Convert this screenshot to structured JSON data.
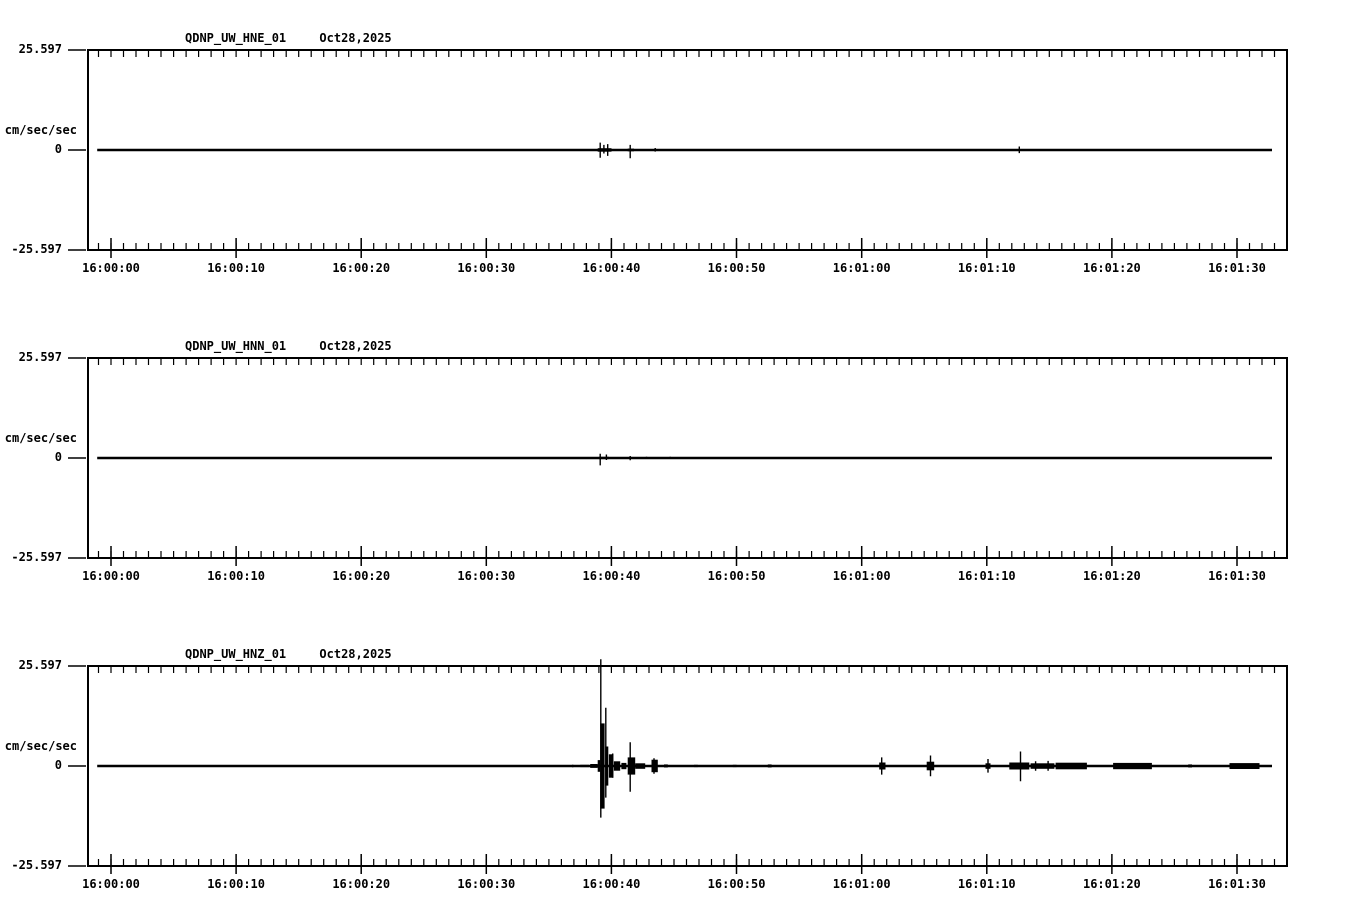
{
  "colors": {
    "foreground": "#000000",
    "background": "#ffffff"
  },
  "axis": {
    "y_max_label": "25.597",
    "y_zero_label": "0",
    "y_min_label": "-25.597",
    "y_unit_label": "cm/sec/sec",
    "y_max_value": 25.597,
    "x_minor_tick_interval_sec": 1,
    "trace_start_sec": -1.1,
    "trace_end_sec": 92.8,
    "x_major_ticks": [
      {
        "t": 0,
        "label": "16:00:00"
      },
      {
        "t": 10,
        "label": "16:00:10"
      },
      {
        "t": 20,
        "label": "16:00:20"
      },
      {
        "t": 30,
        "label": "16:00:30"
      },
      {
        "t": 40,
        "label": "16:00:40"
      },
      {
        "t": 50,
        "label": "16:00:50"
      },
      {
        "t": 60,
        "label": "16:01:00"
      },
      {
        "t": 70,
        "label": "16:01:10"
      },
      {
        "t": 80,
        "label": "16:01:20"
      },
      {
        "t": 90,
        "label": "16:01:30"
      }
    ]
  },
  "chart_data": [
    {
      "type": "line",
      "title": "QDNP_UW_HNE_01   Oct28,2025",
      "station": "QDNP_UW_HNE_01",
      "date": "Oct28,2025",
      "ylabel": "cm/sec/sec",
      "ylim": [
        -25.597,
        25.597
      ],
      "baseline_value": 0,
      "x_unit": "time of day (HH:MM:SS), seconds after 16:00:00",
      "spikes": [
        [
          39.1,
          1.9,
          2.0
        ],
        [
          39.4,
          1.3,
          0.9
        ],
        [
          39.7,
          1.5,
          1.5
        ],
        [
          41.5,
          1.3,
          2.1
        ],
        [
          43.5,
          0.5,
          0.4
        ],
        [
          72.6,
          0.9,
          0.8
        ]
      ],
      "bands": [
        [
          38.9,
          40.0,
          0.45
        ],
        [
          41.3,
          41.8,
          0.35
        ],
        [
          69.9,
          70.1,
          0.2
        ]
      ]
    },
    {
      "type": "line",
      "title": "QDNP_UW_HNN_01   Oct28,2025",
      "station": "QDNP_UW_HNN_01",
      "date": "Oct28,2025",
      "ylabel": "cm/sec/sec",
      "ylim": [
        -25.597,
        25.597
      ],
      "baseline_value": 0,
      "x_unit": "time of day (HH:MM:SS), seconds after 16:00:00",
      "spikes": [
        [
          39.1,
          1.1,
          1.9
        ],
        [
          39.6,
          0.9,
          0.5
        ],
        [
          41.5,
          0.5,
          0.6
        ],
        [
          42.8,
          0.3,
          0.25
        ],
        [
          44.7,
          0.3,
          0.2
        ]
      ],
      "bands": [
        [
          39.0,
          39.8,
          0.3
        ],
        [
          54.8,
          55.0,
          0.2
        ],
        [
          65.6,
          65.8,
          0.2
        ],
        [
          70.2,
          70.4,
          0.2
        ]
      ]
    },
    {
      "type": "line",
      "title": "QDNP_UW_HNZ_01   Oct28,2025",
      "station": "QDNP_UW_HNZ_01",
      "date": "Oct28,2025",
      "ylabel": "cm/sec/sec",
      "ylim": [
        -25.597,
        25.597
      ],
      "baseline_value": 0,
      "x_unit": "time of day (HH:MM:SS), seconds after 16:00:00",
      "spikes": [
        [
          36.9,
          0.3,
          0.3
        ],
        [
          39.15,
          27.3,
          13.2
        ],
        [
          39.55,
          14.9,
          8.1
        ],
        [
          40.1,
          3.2,
          3.0
        ],
        [
          41.5,
          6.1,
          6.6
        ],
        [
          43.4,
          2.0,
          2.0
        ],
        [
          61.6,
          2.2,
          2.2
        ],
        [
          65.5,
          2.7,
          2.6
        ],
        [
          70.1,
          1.8,
          1.7
        ],
        [
          72.7,
          3.7,
          3.9
        ],
        [
          73.9,
          1.2,
          1.2
        ],
        [
          74.9,
          1.3,
          1.2
        ]
      ],
      "bands": [
        [
          37.5,
          38.2,
          0.3
        ],
        [
          38.3,
          38.9,
          0.5
        ],
        [
          38.9,
          39.1,
          1.5
        ],
        [
          39.1,
          39.45,
          10.9
        ],
        [
          39.5,
          39.75,
          5.0
        ],
        [
          39.8,
          40.15,
          3.0
        ],
        [
          40.2,
          40.7,
          1.2
        ],
        [
          40.8,
          41.2,
          0.8
        ],
        [
          41.3,
          41.9,
          2.2
        ],
        [
          41.9,
          42.7,
          0.7
        ],
        [
          43.2,
          43.7,
          1.6
        ],
        [
          44.2,
          44.5,
          0.4
        ],
        [
          46.6,
          46.9,
          0.3
        ],
        [
          49.7,
          50.0,
          0.3
        ],
        [
          52.5,
          52.8,
          0.4
        ],
        [
          61.4,
          61.9,
          0.9
        ],
        [
          65.2,
          65.8,
          1.1
        ],
        [
          69.9,
          70.3,
          0.7
        ],
        [
          71.8,
          73.4,
          0.9
        ],
        [
          73.5,
          75.4,
          0.7
        ],
        [
          75.5,
          78.0,
          0.85
        ],
        [
          80.1,
          83.2,
          0.8
        ],
        [
          86.1,
          86.4,
          0.4
        ],
        [
          89.4,
          91.8,
          0.75
        ]
      ]
    }
  ]
}
